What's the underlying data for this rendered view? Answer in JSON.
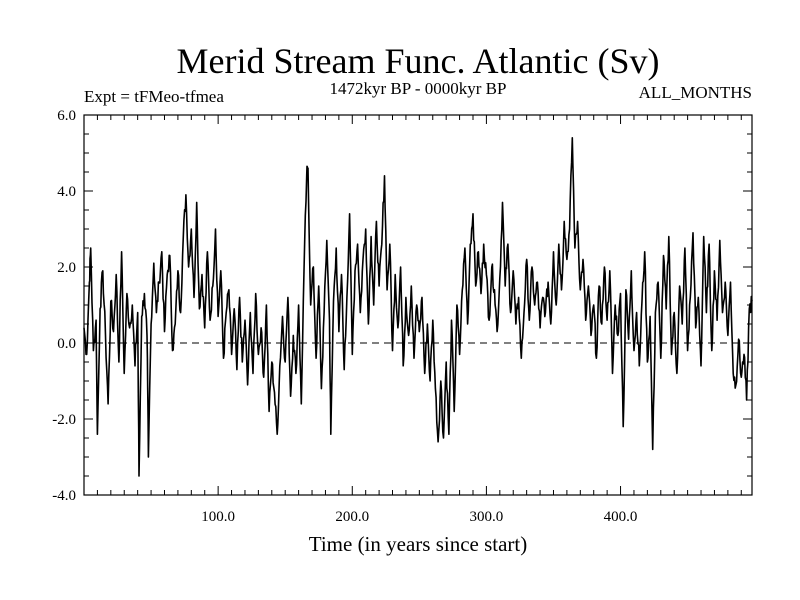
{
  "chart_data": {
    "type": "line",
    "title": "Merid Stream Func. Atlantic (Sv)",
    "subtitle_left": "Expt = tFMeo-tfmea",
    "subtitle_center": "1472kyr BP - 0000kyr BP",
    "subtitle_right": "ALL_MONTHS",
    "xlabel": "Time (in years since start)",
    "ylabel": "",
    "xlim": [
      0,
      498
    ],
    "ylim": [
      -4.0,
      6.0
    ],
    "x_ticks_major": [
      100,
      200,
      300,
      400
    ],
    "x_tick_labels": [
      "100.0",
      "200.0",
      "300.0",
      "400.0"
    ],
    "y_ticks_major": [
      -4,
      -2,
      0,
      2,
      4,
      6
    ],
    "y_tick_labels": [
      "-4.0",
      "-2.0",
      "0.0",
      "2.0",
      "4.0",
      "6.0"
    ],
    "reference_line": 0.0,
    "series": [
      {
        "name": "Merid Stream Func. Atlantic",
        "color": "#000000",
        "keypoints": [
          [
            0,
            0.4
          ],
          [
            2,
            -0.3
          ],
          [
            4,
            1.6
          ],
          [
            5,
            2.5
          ],
          [
            7,
            -0.2
          ],
          [
            9,
            0.6
          ],
          [
            10,
            -2.4
          ],
          [
            12,
            0.9
          ],
          [
            14,
            1.9
          ],
          [
            16,
            0.2
          ],
          [
            18,
            -1.6
          ],
          [
            20,
            1.1
          ],
          [
            22,
            0.3
          ],
          [
            24,
            1.8
          ],
          [
            26,
            -0.5
          ],
          [
            28,
            2.4
          ],
          [
            30,
            -0.8
          ],
          [
            32,
            1.3
          ],
          [
            34,
            0.4
          ],
          [
            36,
            1.0
          ],
          [
            38,
            -0.6
          ],
          [
            40,
            0.8
          ],
          [
            41,
            -3.5
          ],
          [
            43,
            0.7
          ],
          [
            45,
            1.3
          ],
          [
            47,
            0.2
          ],
          [
            48,
            -3.0
          ],
          [
            50,
            0.5
          ],
          [
            52,
            2.1
          ],
          [
            54,
            0.8
          ],
          [
            56,
            1.6
          ],
          [
            58,
            2.4
          ],
          [
            60,
            0.3
          ],
          [
            62,
            1.8
          ],
          [
            64,
            2.3
          ],
          [
            66,
            -0.2
          ],
          [
            68,
            0.5
          ],
          [
            70,
            1.9
          ],
          [
            72,
            0.8
          ],
          [
            74,
            2.8
          ],
          [
            76,
            3.9
          ],
          [
            78,
            2.0
          ],
          [
            80,
            3.0
          ],
          [
            82,
            1.2
          ],
          [
            84,
            3.7
          ],
          [
            86,
            0.9
          ],
          [
            88,
            1.8
          ],
          [
            90,
            0.4
          ],
          [
            92,
            2.4
          ],
          [
            94,
            0.6
          ],
          [
            96,
            1.5
          ],
          [
            98,
            3.0
          ],
          [
            100,
            0.7
          ],
          [
            102,
            1.9
          ],
          [
            104,
            -0.4
          ],
          [
            106,
            0.8
          ],
          [
            108,
            1.4
          ],
          [
            110,
            -0.3
          ],
          [
            112,
            0.9
          ],
          [
            114,
            -0.7
          ],
          [
            116,
            1.2
          ],
          [
            118,
            -0.5
          ],
          [
            120,
            0.6
          ],
          [
            122,
            -1.1
          ],
          [
            124,
            0.8
          ],
          [
            126,
            -0.8
          ],
          [
            128,
            1.3
          ],
          [
            130,
            -0.3
          ],
          [
            132,
            0.4
          ],
          [
            134,
            -0.9
          ],
          [
            136,
            1.0
          ],
          [
            138,
            -1.8
          ],
          [
            140,
            -0.5
          ],
          [
            142,
            -1.3
          ],
          [
            144,
            -2.4
          ],
          [
            146,
            -0.6
          ],
          [
            148,
            0.7
          ],
          [
            150,
            -0.5
          ],
          [
            152,
            1.2
          ],
          [
            154,
            -1.4
          ],
          [
            156,
            0.2
          ],
          [
            158,
            -0.8
          ],
          [
            160,
            1.0
          ],
          [
            162,
            -1.6
          ],
          [
            164,
            1.9
          ],
          [
            166,
            4.4
          ],
          [
            167,
            4.6
          ],
          [
            169,
            1.0
          ],
          [
            171,
            2.0
          ],
          [
            173,
            -0.4
          ],
          [
            175,
            1.5
          ],
          [
            177,
            -1.2
          ],
          [
            179,
            0.8
          ],
          [
            181,
            2.7
          ],
          [
            183,
            0.6
          ],
          [
            184,
            -2.4
          ],
          [
            186,
            1.1
          ],
          [
            188,
            2.5
          ],
          [
            190,
            0.3
          ],
          [
            192,
            1.8
          ],
          [
            194,
            -0.7
          ],
          [
            196,
            1.2
          ],
          [
            198,
            3.4
          ],
          [
            200,
            -0.3
          ],
          [
            202,
            1.9
          ],
          [
            204,
            2.6
          ],
          [
            206,
            0.8
          ],
          [
            208,
            2.2
          ],
          [
            210,
            3.0
          ],
          [
            212,
            0.5
          ],
          [
            214,
            2.8
          ],
          [
            216,
            1.0
          ],
          [
            218,
            3.2
          ],
          [
            220,
            1.5
          ],
          [
            222,
            2.6
          ],
          [
            224,
            4.4
          ],
          [
            226,
            1.4
          ],
          [
            228,
            2.6
          ],
          [
            230,
            -0.2
          ],
          [
            232,
            1.8
          ],
          [
            234,
            0.4
          ],
          [
            236,
            2.0
          ],
          [
            238,
            -0.6
          ],
          [
            240,
            1.2
          ],
          [
            242,
            0.2
          ],
          [
            244,
            1.5
          ],
          [
            246,
            -0.4
          ],
          [
            248,
            1.0
          ],
          [
            250,
            0.3
          ],
          [
            252,
            1.2
          ],
          [
            254,
            -0.8
          ],
          [
            256,
            0.5
          ],
          [
            258,
            -1.0
          ],
          [
            260,
            0.6
          ],
          [
            262,
            -1.2
          ],
          [
            264,
            -2.6
          ],
          [
            266,
            -1.0
          ],
          [
            268,
            -2.5
          ],
          [
            270,
            -0.5
          ],
          [
            272,
            -2.4
          ],
          [
            274,
            0.6
          ],
          [
            276,
            -1.8
          ],
          [
            278,
            1.0
          ],
          [
            280,
            -0.3
          ],
          [
            282,
            1.4
          ],
          [
            284,
            2.5
          ],
          [
            286,
            0.5
          ],
          [
            288,
            2.6
          ],
          [
            290,
            3.4
          ],
          [
            292,
            1.5
          ],
          [
            294,
            2.4
          ],
          [
            296,
            1.3
          ],
          [
            298,
            2.6
          ],
          [
            300,
            1.8
          ],
          [
            302,
            0.6
          ],
          [
            304,
            2.0
          ],
          [
            306,
            1.4
          ],
          [
            308,
            0.3
          ],
          [
            310,
            1.7
          ],
          [
            312,
            3.7
          ],
          [
            314,
            1.5
          ],
          [
            316,
            2.6
          ],
          [
            318,
            0.8
          ],
          [
            320,
            1.9
          ],
          [
            322,
            0.5
          ],
          [
            324,
            1.2
          ],
          [
            326,
            -0.4
          ],
          [
            328,
            0.8
          ],
          [
            330,
            2.2
          ],
          [
            332,
            0.6
          ],
          [
            334,
            2.0
          ],
          [
            336,
            1.0
          ],
          [
            338,
            1.6
          ],
          [
            340,
            0.4
          ],
          [
            342,
            1.2
          ],
          [
            344,
            0.8
          ],
          [
            346,
            1.6
          ],
          [
            348,
            0.5
          ],
          [
            350,
            2.4
          ],
          [
            352,
            1.0
          ],
          [
            354,
            2.6
          ],
          [
            356,
            1.4
          ],
          [
            358,
            3.2
          ],
          [
            360,
            2.2
          ],
          [
            362,
            3.0
          ],
          [
            364,
            5.4
          ],
          [
            366,
            2.5
          ],
          [
            368,
            3.2
          ],
          [
            370,
            1.4
          ],
          [
            372,
            2.2
          ],
          [
            374,
            0.6
          ],
          [
            376,
            1.5
          ],
          [
            378,
            0.2
          ],
          [
            380,
            1.0
          ],
          [
            382,
            -0.4
          ],
          [
            384,
            1.5
          ],
          [
            386,
            0.5
          ],
          [
            388,
            2.0
          ],
          [
            390,
            0.6
          ],
          [
            392,
            1.9
          ],
          [
            394,
            -0.8
          ],
          [
            396,
            1.0
          ],
          [
            398,
            0.2
          ],
          [
            400,
            1.3
          ],
          [
            402,
            -2.2
          ],
          [
            404,
            1.4
          ],
          [
            406,
            0.1
          ],
          [
            408,
            1.9
          ],
          [
            410,
            -0.2
          ],
          [
            412,
            0.8
          ],
          [
            414,
            -0.6
          ],
          [
            416,
            1.1
          ],
          [
            418,
            2.4
          ],
          [
            420,
            -0.5
          ],
          [
            422,
            0.7
          ],
          [
            424,
            -2.8
          ],
          [
            426,
            0.8
          ],
          [
            428,
            1.6
          ],
          [
            430,
            -0.4
          ],
          [
            432,
            2.3
          ],
          [
            434,
            0.9
          ],
          [
            436,
            2.8
          ],
          [
            438,
            -0.3
          ],
          [
            440,
            0.8
          ],
          [
            442,
            -0.8
          ],
          [
            444,
            1.5
          ],
          [
            446,
            0.5
          ],
          [
            448,
            2.5
          ],
          [
            450,
            -0.2
          ],
          [
            452,
            1.2
          ],
          [
            454,
            2.9
          ],
          [
            456,
            0.4
          ],
          [
            458,
            1.2
          ],
          [
            460,
            -0.6
          ],
          [
            462,
            2.8
          ],
          [
            464,
            0.8
          ],
          [
            466,
            2.6
          ],
          [
            468,
            -0.2
          ],
          [
            470,
            1.9
          ],
          [
            472,
            0.6
          ],
          [
            474,
            2.7
          ],
          [
            476,
            0.8
          ],
          [
            478,
            1.6
          ],
          [
            480,
            0.2
          ],
          [
            482,
            1.6
          ],
          [
            484,
            -0.8
          ],
          [
            486,
            -1.1
          ],
          [
            488,
            0.1
          ],
          [
            490,
            -0.9
          ],
          [
            492,
            -0.3
          ],
          [
            494,
            -1.5
          ],
          [
            496,
            0.9
          ],
          [
            498,
            1.1
          ]
        ]
      }
    ],
    "grid": false,
    "legend": "none"
  }
}
